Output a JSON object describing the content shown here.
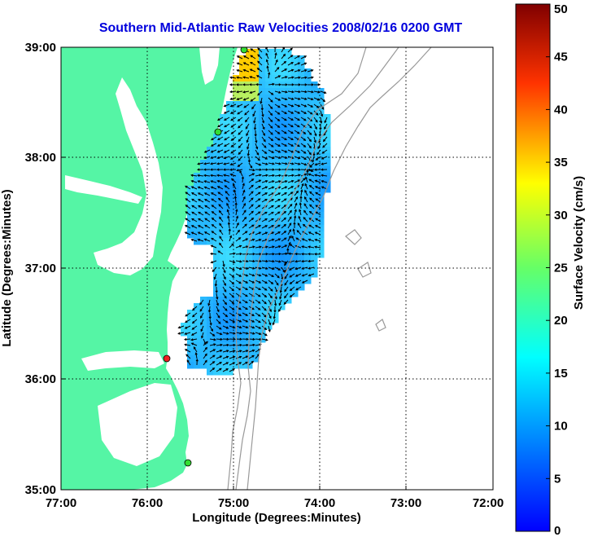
{
  "title": "Southern Mid-Atlantic Raw Velocities 2008/02/16 0200 GMT",
  "xlabel": "Longitude (Degrees:Minutes)",
  "ylabel": "Latitude (Degrees:Minutes)",
  "x_ticks": [
    "77:00",
    "76:00",
    "75:00",
    "74:00",
    "73:00",
    "72:00"
  ],
  "y_ticks": [
    "39:00",
    "38:00",
    "37:00",
    "36:00",
    "35:00"
  ],
  "colorbar": {
    "label": "Surface Velocity (cm/s)",
    "ticks": [
      "50",
      "45",
      "40",
      "35",
      "30",
      "25",
      "20",
      "15",
      "10",
      "5",
      "0"
    ],
    "min": 0,
    "max": 50,
    "colormap": "jet"
  },
  "colors": {
    "land": "#55f5a5",
    "title": "#0000dd",
    "isobath": "#999999",
    "station_active": "#33dd33",
    "station_inactive": "#ee2222"
  },
  "map_extent": {
    "lon": [
      -77,
      -72
    ],
    "lat": [
      35,
      39
    ]
  },
  "grid": "dotted",
  "stations": [
    {
      "name": "north-station",
      "status": "active"
    },
    {
      "name": "mid-station",
      "status": "active"
    },
    {
      "name": "south-station-red",
      "status": "inactive"
    },
    {
      "name": "hatteras-station",
      "status": "active"
    }
  ]
}
